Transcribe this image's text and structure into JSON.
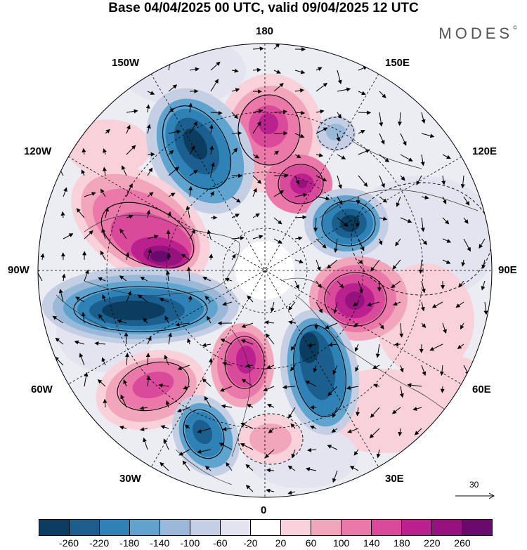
{
  "title": "Base 04/04/2025 00 UTC, valid 09/04/2025 12 UTC",
  "brand": "MODES",
  "brand_mark": "©",
  "longitude_labels": {
    "top": "180",
    "bottom": "0",
    "left": "90W",
    "right": "90E",
    "upper_left_1": "150W",
    "upper_left_2": "120W",
    "upper_right_1": "150E",
    "upper_right_2": "120E",
    "lower_left_1": "60W",
    "lower_left_2": "30W",
    "lower_right_1": "60E",
    "lower_right_2": "30E"
  },
  "reference_vector": {
    "label": "30"
  },
  "colorbar": {
    "colors": [
      "#0a3d60",
      "#1a5f8e",
      "#2f82b6",
      "#5ea4cf",
      "#9ab9d8",
      "#c5cfe3",
      "#e4e4f0",
      "#ffffff",
      "#f8d2d8",
      "#f2a6bb",
      "#ea78a8",
      "#d94a9a",
      "#bb218e",
      "#96127e",
      "#6a0a6f"
    ],
    "tick_labels": [
      "-260",
      "-220",
      "-180",
      "-140",
      "-100",
      "-60",
      "-20",
      "20",
      "60",
      "100",
      "140",
      "180",
      "220",
      "260"
    ]
  },
  "anomaly_centers": [
    {
      "sign": "negative",
      "level": -260,
      "icon": "low-cell"
    },
    {
      "sign": "positive",
      "level": 220,
      "icon": "high-cell"
    }
  ],
  "icons": {
    "arrow": "wind-arrow-icon"
  }
}
